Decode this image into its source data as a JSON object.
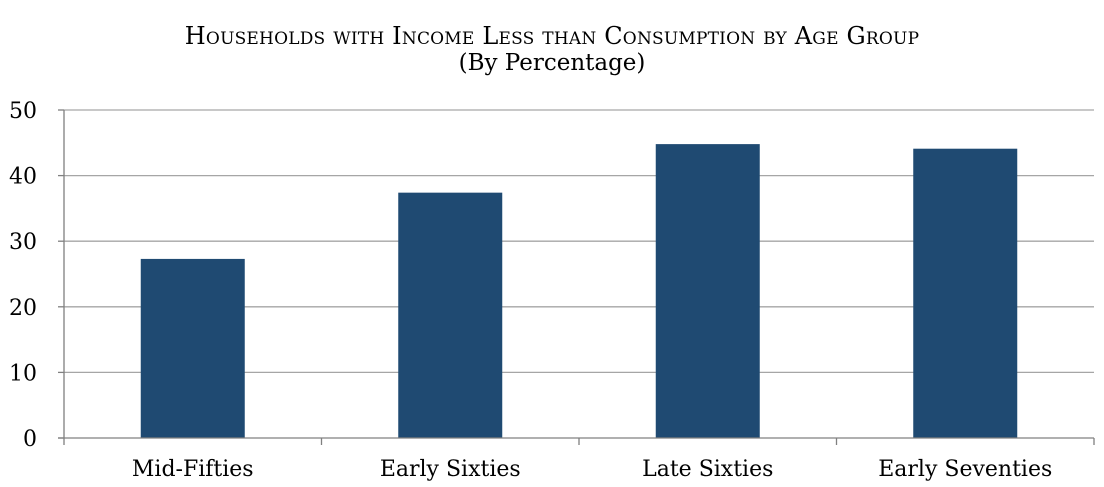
{
  "chart_data": {
    "type": "bar",
    "title": "Households with Income Less than Consumption by Age Group",
    "subtitle": "(By Percentage)",
    "xlabel": "",
    "ylabel": "",
    "categories": [
      "Mid-Fifties",
      "Early Sixties",
      "Late Sixties",
      "Early Seventies"
    ],
    "values": [
      27.3,
      37.4,
      44.8,
      44.1
    ],
    "ylim": [
      0,
      50
    ],
    "yticks": [
      0,
      10,
      20,
      30,
      40,
      50
    ],
    "grid": true,
    "legend": "none",
    "bar_color": "#1f4a72",
    "gridline_color": "#a6a6a6"
  }
}
